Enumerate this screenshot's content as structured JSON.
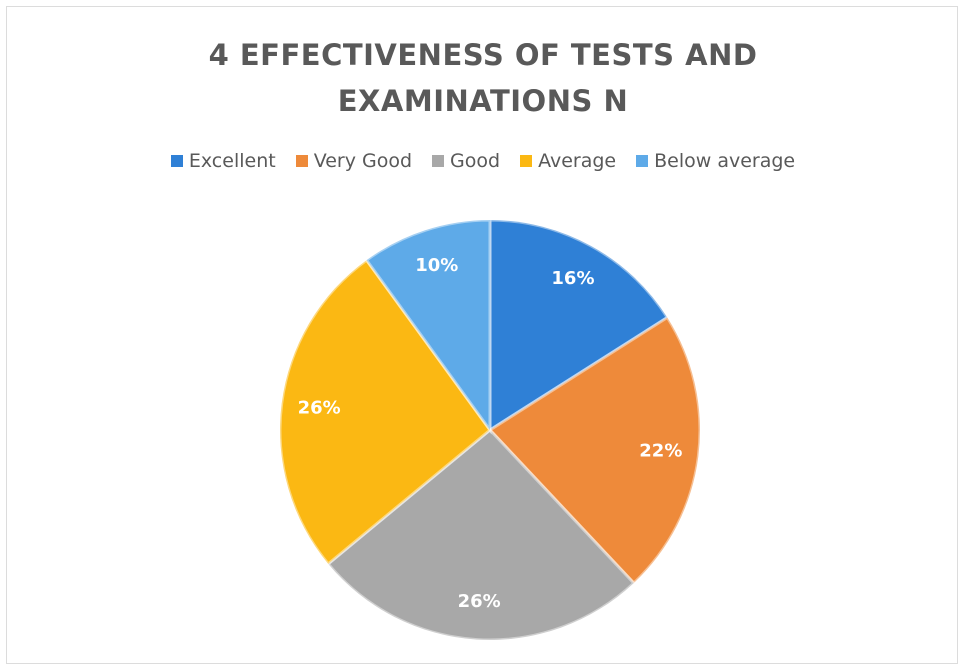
{
  "chart_data": {
    "type": "pie",
    "title": "4 EFFECTIVENESS OF TESTS AND EXAMINATIONS N",
    "categories": [
      "Excellent",
      "Very Good",
      "Good",
      "Average",
      "Below average"
    ],
    "values": [
      16,
      22,
      26,
      26,
      10
    ],
    "value_labels": [
      "16%",
      "22%",
      "26%",
      "26%",
      "10%"
    ],
    "colors": [
      "#2f80d6",
      "#ee8a3a",
      "#a8a8a8",
      "#fbb813",
      "#5eaae8"
    ],
    "legend": "top"
  }
}
